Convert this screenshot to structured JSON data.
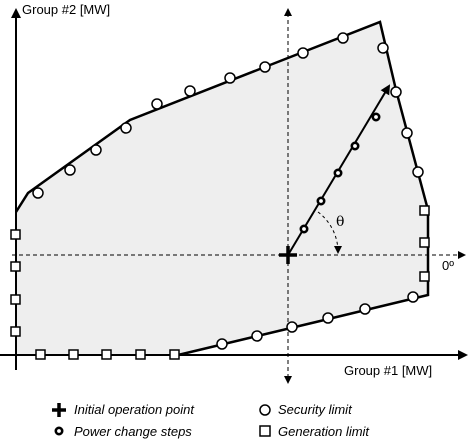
{
  "axes": {
    "y_label": "Group #2 [MW]",
    "x_label": "Group #1 [MW]",
    "angle_label": "θ",
    "zero_degree_label": "0º"
  },
  "legend": {
    "initial_point": "Initial operation point",
    "security_limit": "Security limit",
    "power_change_steps": "Power change steps",
    "generation_limit": "Generation limit"
  },
  "colors": {
    "region_fill": "#eeeeee",
    "line": "#000000",
    "marker_fill": "#ffffff"
  },
  "icons": {
    "initial_point": "plus-cross",
    "security_limit": "open-circle",
    "power_change_steps": "thick-ring",
    "generation_limit": "open-square"
  }
}
